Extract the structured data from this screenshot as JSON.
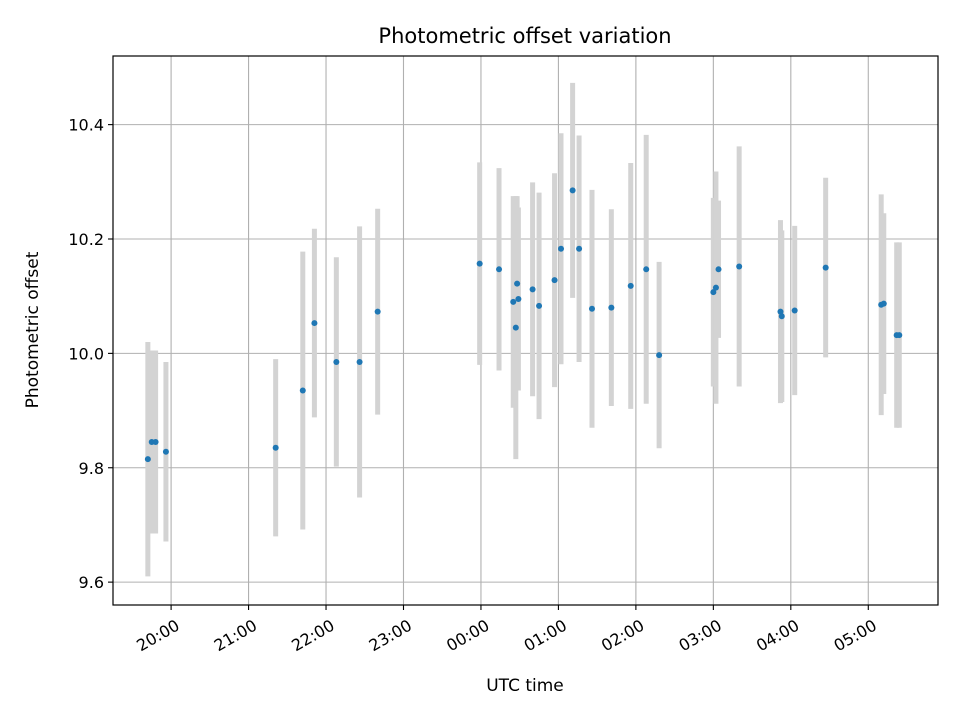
{
  "chart_data": {
    "type": "scatter",
    "title": "Photometric offset variation",
    "xlabel": "UTC time",
    "ylabel": "Photometric offset",
    "x_range": [
      "2024-01-01T19:15",
      "2024-01-02T05:54"
    ],
    "ylim": [
      9.56,
      10.52
    ],
    "x_ticks": [
      {
        "t": "2024-01-01T20:00",
        "label": "20:00"
      },
      {
        "t": "2024-01-01T21:00",
        "label": "21:00"
      },
      {
        "t": "2024-01-01T22:00",
        "label": "22:00"
      },
      {
        "t": "2024-01-01T23:00",
        "label": "23:00"
      },
      {
        "t": "2024-01-02T00:00",
        "label": "00:00"
      },
      {
        "t": "2024-01-02T01:00",
        "label": "01:00"
      },
      {
        "t": "2024-01-02T02:00",
        "label": "02:00"
      },
      {
        "t": "2024-01-02T03:00",
        "label": "03:00"
      },
      {
        "t": "2024-01-02T04:00",
        "label": "04:00"
      },
      {
        "t": "2024-01-02T05:00",
        "label": "05:00"
      }
    ],
    "y_ticks": [
      {
        "v": 9.6,
        "label": "9.6"
      },
      {
        "v": 9.8,
        "label": "9.8"
      },
      {
        "v": 10.0,
        "label": "10.0"
      },
      {
        "v": 10.2,
        "label": "10.2"
      },
      {
        "v": 10.4,
        "label": "10.4"
      }
    ],
    "grid": true,
    "marker_color": "#1f77b4",
    "errorbar_color": "#d3d3d3",
    "points": [
      {
        "t": "2024-01-01T19:42",
        "y": 9.815,
        "err": 0.205
      },
      {
        "t": "2024-01-01T19:45",
        "y": 9.845,
        "err": 0.16
      },
      {
        "t": "2024-01-01T19:48",
        "y": 9.845,
        "err": 0.16
      },
      {
        "t": "2024-01-01T19:56",
        "y": 9.828,
        "err": 0.157
      },
      {
        "t": "2024-01-01T21:21",
        "y": 9.835,
        "err": 0.155
      },
      {
        "t": "2024-01-01T21:42",
        "y": 9.935,
        "err": 0.243
      },
      {
        "t": "2024-01-01T21:51",
        "y": 10.053,
        "err": 0.165
      },
      {
        "t": "2024-01-01T22:08",
        "y": 9.985,
        "err": 0.183
      },
      {
        "t": "2024-01-01T22:26",
        "y": 9.985,
        "err": 0.237
      },
      {
        "t": "2024-01-01T22:40",
        "y": 10.073,
        "err": 0.18
      },
      {
        "t": "2024-01-01T23:59",
        "y": 10.157,
        "err": 0.177
      },
      {
        "t": "2024-01-02T00:14",
        "y": 10.147,
        "err": 0.177
      },
      {
        "t": "2024-01-02T00:25",
        "y": 10.09,
        "err": 0.185
      },
      {
        "t": "2024-01-02T00:27",
        "y": 10.045,
        "err": 0.23
      },
      {
        "t": "2024-01-02T00:28",
        "y": 10.122,
        "err": 0.153
      },
      {
        "t": "2024-01-02T00:29",
        "y": 10.095,
        "err": 0.16
      },
      {
        "t": "2024-01-02T00:40",
        "y": 10.112,
        "err": 0.187
      },
      {
        "t": "2024-01-02T00:45",
        "y": 10.083,
        "err": 0.198
      },
      {
        "t": "2024-01-02T00:57",
        "y": 10.128,
        "err": 0.187
      },
      {
        "t": "2024-01-02T01:02",
        "y": 10.183,
        "err": 0.202
      },
      {
        "t": "2024-01-02T01:11",
        "y": 10.285,
        "err": 0.188
      },
      {
        "t": "2024-01-02T01:16",
        "y": 10.183,
        "err": 0.198
      },
      {
        "t": "2024-01-02T01:26",
        "y": 10.078,
        "err": 0.208
      },
      {
        "t": "2024-01-02T01:41",
        "y": 10.08,
        "err": 0.172
      },
      {
        "t": "2024-01-02T01:56",
        "y": 10.118,
        "err": 0.215
      },
      {
        "t": "2024-01-02T02:08",
        "y": 10.147,
        "err": 0.235
      },
      {
        "t": "2024-01-02T02:18",
        "y": 9.997,
        "err": 0.163
      },
      {
        "t": "2024-01-02T03:00",
        "y": 10.107,
        "err": 0.165
      },
      {
        "t": "2024-01-02T03:02",
        "y": 10.115,
        "err": 0.203
      },
      {
        "t": "2024-01-02T03:04",
        "y": 10.147,
        "err": 0.12
      },
      {
        "t": "2024-01-02T03:20",
        "y": 10.152,
        "err": 0.21
      },
      {
        "t": "2024-01-02T03:52",
        "y": 10.073,
        "err": 0.16
      },
      {
        "t": "2024-01-02T03:53",
        "y": 10.065,
        "err": 0.15
      },
      {
        "t": "2024-01-02T04:03",
        "y": 10.075,
        "err": 0.148
      },
      {
        "t": "2024-01-02T04:27",
        "y": 10.15,
        "err": 0.157
      },
      {
        "t": "2024-01-02T05:10",
        "y": 10.085,
        "err": 0.193
      },
      {
        "t": "2024-01-02T05:12",
        "y": 10.087,
        "err": 0.158
      },
      {
        "t": "2024-01-02T05:22",
        "y": 10.032,
        "err": 0.162
      },
      {
        "t": "2024-01-02T05:24",
        "y": 10.032,
        "err": 0.162
      }
    ]
  }
}
